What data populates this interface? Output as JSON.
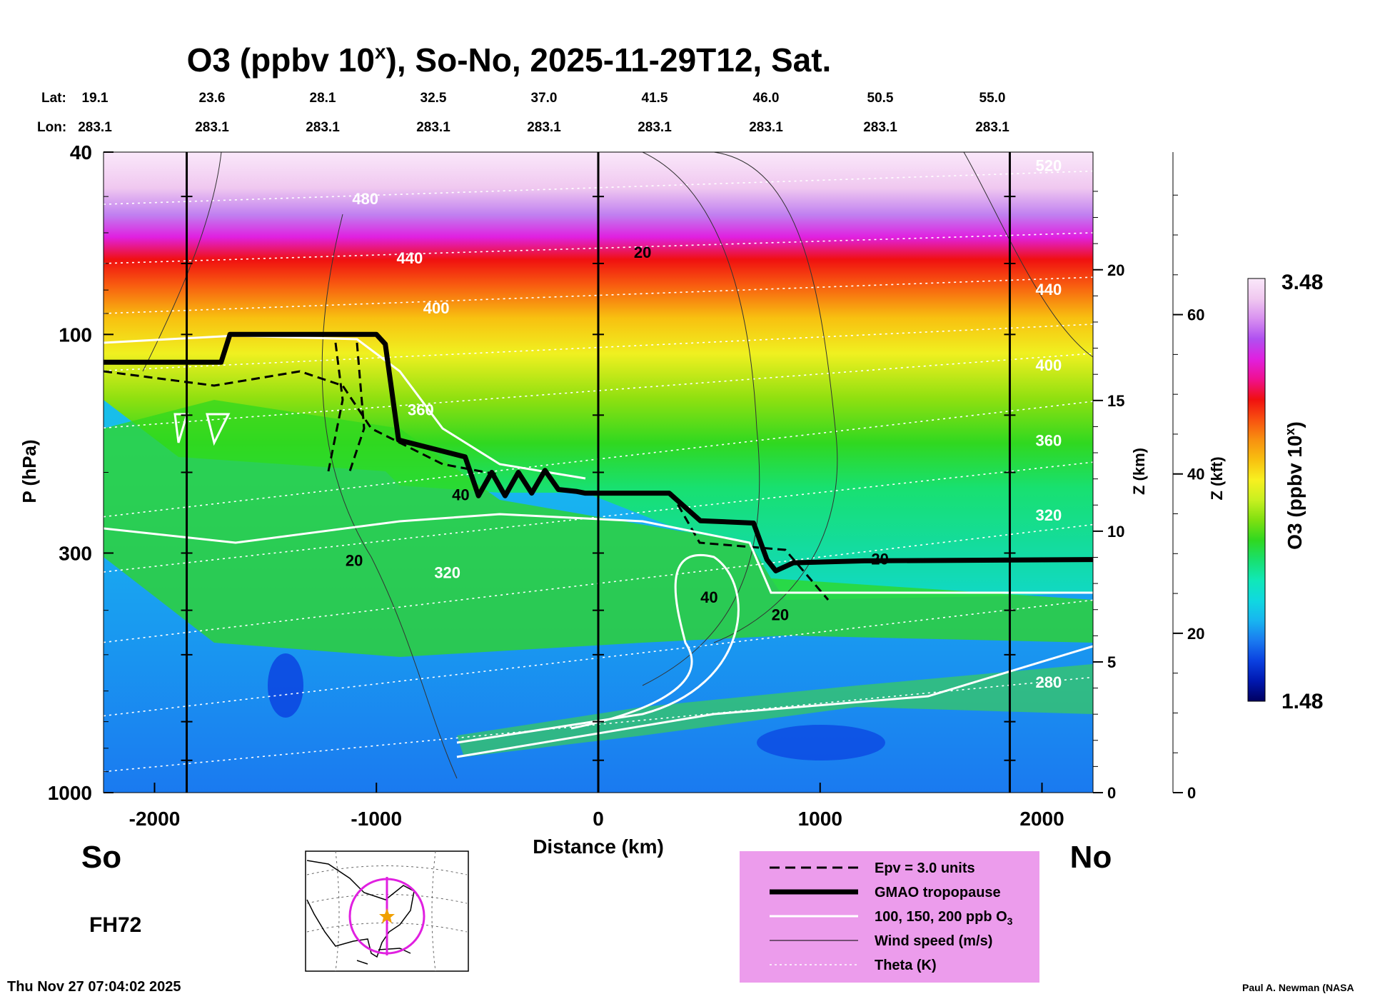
{
  "chart_data": {
    "type": "heatmap",
    "title_main": "O3 (ppbv 10",
    "title_sup": "x",
    "title_rest": "), So-No, 2025-11-29T12, Sat.",
    "lat_label": "Lat:",
    "lon_label": "Lon:",
    "lat": [
      "19.1",
      "23.6",
      "28.1",
      "32.5",
      "37.0",
      "41.5",
      "46.0",
      "50.5",
      "55.0"
    ],
    "lon": [
      "283.1",
      "283.1",
      "283.1",
      "283.1",
      "283.1",
      "283.1",
      "283.1",
      "283.1",
      "283.1"
    ],
    "xlabel": "Distance (km)",
    "xlim": [
      -2230,
      2230
    ],
    "x_ticks": [
      -2000,
      -1000,
      0,
      1000,
      2000
    ],
    "x_tick_labels": [
      "-2000",
      "-1000",
      "0",
      "1000",
      "2000"
    ],
    "ylabel": "P (hPa)",
    "ylim": [
      1000,
      40
    ],
    "y_ticks": [
      40,
      100,
      300,
      1000
    ],
    "y_tick_labels": [
      "40",
      "100",
      "300",
      "1000"
    ],
    "z_km_label": "Z (km)",
    "z_km_ticks": [
      0,
      5,
      10,
      15,
      20
    ],
    "z_km_labels": [
      "0",
      "5",
      "10",
      "15",
      "20"
    ],
    "z_kft_label": "Z (kft)",
    "z_kft_ticks": [
      0,
      20,
      40,
      60
    ],
    "z_kft_labels": [
      "0",
      "20",
      "40",
      "60"
    ],
    "colorbar_label_main": "O3 (ppbv 10",
    "colorbar_label_sup": "x",
    "colorbar_label_rest": ")",
    "colorbar_range": [
      1.48,
      3.48
    ],
    "colorbar_max_label": "3.48",
    "colorbar_min_label": "1.48",
    "colorbar_colors": [
      "#000060",
      "#0018b0",
      "#0a40e0",
      "#1a7af0",
      "#18b4f0",
      "#10d8e0",
      "#10e8b8",
      "#18e070",
      "#30d820",
      "#80e010",
      "#c8f020",
      "#f8f020",
      "#f8c010",
      "#f89010",
      "#f85010",
      "#f01010",
      "#f01090",
      "#e020e0",
      "#b050f0",
      "#d890f0",
      "#f0c8f0",
      "#fae8fa"
    ],
    "vertical_lines_km": [
      -1855,
      0,
      1855
    ],
    "tropopause": [
      [
        -2230,
        115
      ],
      [
        -1700,
        115
      ],
      [
        -1660,
        100
      ],
      [
        -1000,
        100
      ],
      [
        -960,
        105
      ],
      [
        -900,
        170
      ],
      [
        -600,
        185
      ],
      [
        -540,
        225
      ],
      [
        -480,
        200
      ],
      [
        -420,
        225
      ],
      [
        -360,
        200
      ],
      [
        -300,
        222
      ],
      [
        -240,
        198
      ],
      [
        -180,
        218
      ],
      [
        -100,
        220
      ],
      [
        -60,
        222
      ],
      [
        320,
        222
      ],
      [
        460,
        255
      ],
      [
        700,
        258
      ],
      [
        760,
        310
      ],
      [
        800,
        328
      ],
      [
        880,
        315
      ],
      [
        1200,
        312
      ],
      [
        2230,
        310
      ]
    ],
    "theta_levels": [
      {
        "label": "280",
        "x": 2030,
        "p": 590
      },
      {
        "label": "320",
        "x": 2030,
        "p": 255
      },
      {
        "label": "360",
        "x": 2030,
        "p": 175
      },
      {
        "label": "400",
        "x": 2030,
        "p": 120
      },
      {
        "label": "440",
        "x": 2030,
        "p": 82
      },
      {
        "label": "520",
        "x": 2030,
        "p": 44
      },
      {
        "label": "320",
        "x": -680,
        "p": 340
      },
      {
        "label": "360",
        "x": -800,
        "p": 150
      },
      {
        "label": "400",
        "x": -730,
        "p": 90
      },
      {
        "label": "440",
        "x": -850,
        "p": 70
      },
      {
        "label": "480",
        "x": -1050,
        "p": 52
      }
    ],
    "wind_labels": [
      {
        "label": "20",
        "x": 200,
        "p": 68
      },
      {
        "label": "20",
        "x": -1100,
        "p": 320
      },
      {
        "label": "20",
        "x": 1270,
        "p": 318
      },
      {
        "label": "20",
        "x": 820,
        "p": 420
      },
      {
        "label": "40",
        "x": 500,
        "p": 385
      },
      {
        "label": "40",
        "x": -620,
        "p": 230
      }
    ],
    "left_label": "So",
    "right_label": "No",
    "forecast_hour": "FH72",
    "legend": [
      {
        "label": "Epv = 3.0 units",
        "style": "dashed-black"
      },
      {
        "label": "GMAO tropopause",
        "style": "thick-black"
      },
      {
        "label": "100, 150, 200 ppb O",
        "sub": "3",
        "style": "white"
      },
      {
        "label": "Wind speed (m/s)",
        "style": "thin-black"
      },
      {
        "label": "Theta (K)",
        "style": "dotted-white"
      }
    ],
    "legend_bg": "#ec9cec",
    "timestamp": "Thu Nov 27 07:04:02 2025",
    "credit": "Paul A. Newman (NASA"
  }
}
